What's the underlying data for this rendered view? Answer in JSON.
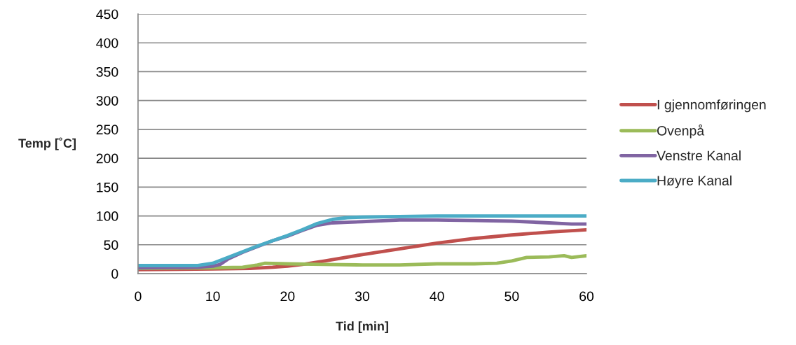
{
  "chart_data": {
    "type": "line",
    "xlabel": "Tid [min]",
    "ylabel": "Temp [˚C]",
    "xlim": [
      0,
      60
    ],
    "xticks": [
      0,
      10,
      20,
      30,
      40,
      50,
      60
    ],
    "ylim": [
      0,
      450
    ],
    "yticks": [
      0,
      50,
      100,
      150,
      200,
      250,
      300,
      350,
      400,
      450
    ],
    "grid": "y",
    "legend": "right",
    "marker": "none",
    "line_style": "solid",
    "series": [
      {
        "name": "I gjennomføringen",
        "color": "#c0504d",
        "x": [
          0,
          10,
          15,
          18,
          20,
          22,
          25,
          30,
          35,
          40,
          45,
          50,
          55,
          60
        ],
        "values": [
          7,
          8,
          9,
          11,
          13,
          16,
          22,
          33,
          43,
          53,
          61,
          67,
          72,
          76
        ]
      },
      {
        "name": "Ovenpå",
        "color": "#9bbb59",
        "x": [
          0,
          10,
          14,
          16,
          17,
          20,
          25,
          30,
          35,
          40,
          45,
          48,
          50,
          52,
          55,
          57,
          58,
          60
        ],
        "values": [
          9,
          10,
          11,
          15,
          18,
          17,
          16,
          15,
          15,
          17,
          17,
          18,
          22,
          28,
          29,
          31,
          28,
          31
        ]
      },
      {
        "name": "Venstre Kanal",
        "color": "#8064a2",
        "x": [
          0,
          8,
          10,
          11,
          12,
          14,
          16,
          18,
          20,
          22,
          24,
          26,
          28,
          30,
          35,
          40,
          45,
          50,
          55,
          58,
          60
        ],
        "values": [
          10,
          11,
          13,
          16,
          25,
          37,
          47,
          57,
          65,
          75,
          84,
          88,
          89,
          90,
          93,
          93,
          92,
          91,
          88,
          86,
          86
        ]
      },
      {
        "name": "Høyre Kanal",
        "color": "#4bacc6",
        "x": [
          0,
          8,
          10,
          12,
          14,
          16,
          18,
          20,
          22,
          24,
          26,
          28,
          30,
          35,
          40,
          50,
          60
        ],
        "values": [
          14,
          14,
          18,
          28,
          38,
          48,
          57,
          66,
          76,
          87,
          94,
          97,
          98,
          99,
          100,
          100,
          100
        ]
      }
    ]
  }
}
